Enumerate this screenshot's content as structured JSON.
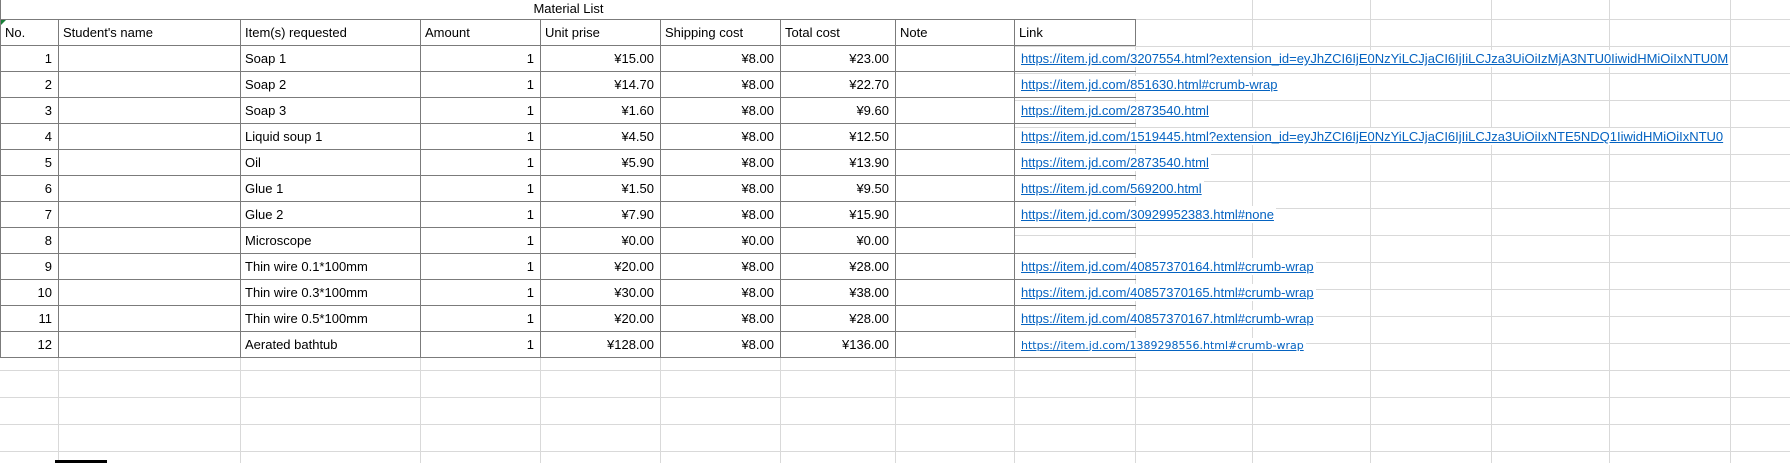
{
  "title": "Material List",
  "columns": [
    "No.",
    "Student's name",
    "Item(s) requested",
    "Amount",
    "Unit prise",
    "Shipping cost",
    "Total cost",
    "Note",
    "Link"
  ],
  "rows": [
    {
      "no": "1",
      "student": "",
      "item": "Soap 1",
      "amount": "1",
      "unit_price": "¥15.00",
      "shipping": "¥8.00",
      "total": "¥23.00",
      "note": "",
      "link": "https://item.jd.com/3207554.html?extension_id=eyJhZCI6IjE0NzYiLCJjaCI6IjIiLCJza3UiOiIzMjA3NTU0IiwidHMiOiIxNTU0M",
      "link_small": false
    },
    {
      "no": "2",
      "student": "",
      "item": "Soap 2",
      "amount": "1",
      "unit_price": "¥14.70",
      "shipping": "¥8.00",
      "total": "¥22.70",
      "note": "",
      "link": "https://item.jd.com/851630.html#crumb-wrap",
      "link_small": false
    },
    {
      "no": "3",
      "student": "",
      "item": "Soap 3",
      "amount": "1",
      "unit_price": "¥1.60",
      "shipping": "¥8.00",
      "total": "¥9.60",
      "note": "",
      "link": "https://item.jd.com/2873540.html",
      "link_small": false
    },
    {
      "no": "4",
      "student": "",
      "item": "Liquid soup 1",
      "amount": "1",
      "unit_price": "¥4.50",
      "shipping": "¥8.00",
      "total": "¥12.50",
      "note": "",
      "link": "https://item.jd.com/1519445.html?extension_id=eyJhZCI6IjE0NzYiLCJjaCI6IjIiLCJza3UiOiIxNTE5NDQ1IiwidHMiOiIxNTU0",
      "link_small": false
    },
    {
      "no": "5",
      "student": "",
      "item": "Oil",
      "amount": "1",
      "unit_price": "¥5.90",
      "shipping": "¥8.00",
      "total": "¥13.90",
      "note": "",
      "link": "https://item.jd.com/2873540.html",
      "link_small": false
    },
    {
      "no": "6",
      "student": "",
      "item": "Glue 1",
      "amount": "1",
      "unit_price": "¥1.50",
      "shipping": "¥8.00",
      "total": "¥9.50",
      "note": "",
      "link": "https://item.jd.com/569200.html",
      "link_small": false
    },
    {
      "no": "7",
      "student": "",
      "item": "Glue 2",
      "amount": "1",
      "unit_price": "¥7.90",
      "shipping": "¥8.00",
      "total": "¥15.90",
      "note": "",
      "link": "https://item.jd.com/30929952383.html#none",
      "link_small": false
    },
    {
      "no": "8",
      "student": "",
      "item": "Microscope",
      "amount": "1",
      "unit_price": "¥0.00",
      "shipping": "¥0.00",
      "total": "¥0.00",
      "note": "",
      "link": "",
      "link_small": false
    },
    {
      "no": "9",
      "student": "",
      "item": "Thin wire 0.1*100mm",
      "amount": "1",
      "unit_price": "¥20.00",
      "shipping": "¥8.00",
      "total": "¥28.00",
      "note": "",
      "link": "https://item.jd.com/40857370164.html#crumb-wrap",
      "link_small": false
    },
    {
      "no": "10",
      "student": "",
      "item": "Thin wire 0.3*100mm",
      "amount": "1",
      "unit_price": "¥30.00",
      "shipping": "¥8.00",
      "total": "¥38.00",
      "note": "",
      "link": "https://item.jd.com/40857370165.html#crumb-wrap",
      "link_small": false
    },
    {
      "no": "11",
      "student": "",
      "item": "Thin wire 0.5*100mm",
      "amount": "1",
      "unit_price": "¥20.00",
      "shipping": "¥8.00",
      "total": "¥28.00",
      "note": "",
      "link": "https://item.jd.com/40857370167.html#crumb-wrap",
      "link_small": false
    },
    {
      "no": "12",
      "student": "",
      "item": "Aerated bathtub",
      "amount": "1",
      "unit_price": "¥128.00",
      "shipping": "¥8.00",
      "total": "¥136.00",
      "note": "",
      "link": "https://item.jd.com/1389298556.html#crumb-wrap",
      "link_small": true
    }
  ],
  "colors": {
    "hyperlink": "#0563C1",
    "table_border": "#7b7b7b",
    "gridline": "#d9d9d9",
    "error_indicator": "#188038"
  }
}
